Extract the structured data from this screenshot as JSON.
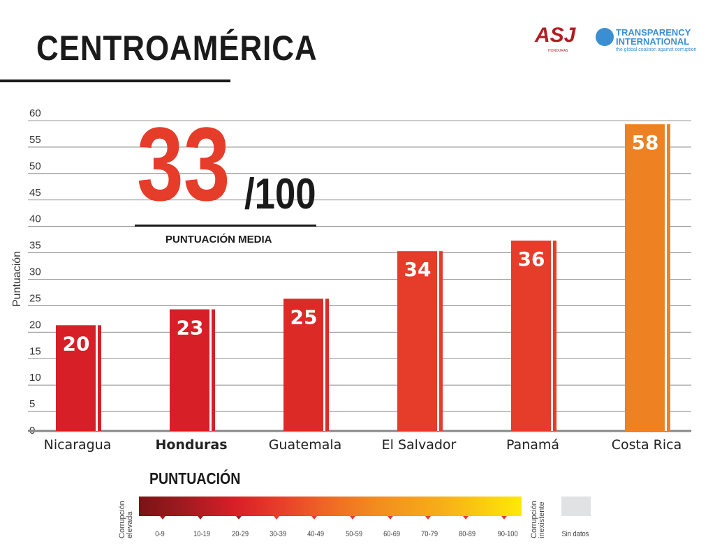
{
  "header": {
    "title": "CENTROAMÉRICA",
    "logo_asj": "ASJ",
    "logo_asj_sub": "HONDURAS",
    "logo_ti_line1": "TRANSPARENCY",
    "logo_ti_line2": "INTERNATIONAL",
    "logo_ti_tagline": "the global coalition against corruption"
  },
  "highlight": {
    "score": "33",
    "of": "/100",
    "label": "PUNTUACIÓN MEDIA"
  },
  "chart_data": {
    "type": "bar",
    "ylabel": "Puntuación",
    "ylim": [
      0,
      60
    ],
    "yticks": [
      "0",
      "5",
      "10",
      "15",
      "20",
      "25",
      "30",
      "35",
      "40",
      "45",
      "50",
      "55",
      "60"
    ],
    "grid": true,
    "categories": [
      "Nicaragua",
      "Honduras",
      "Guatemala",
      "El Salvador",
      "Panamá",
      "Costa Rica"
    ],
    "highlighted_category": "Honduras",
    "values": [
      20,
      23,
      25,
      34,
      36,
      58
    ],
    "colors": [
      "#d71f27",
      "#d71f27",
      "#dc2a26",
      "#e63c2a",
      "#e63c2a",
      "#ee8122"
    ]
  },
  "legend": {
    "title": "PUNTUACIÓN",
    "left_label": "Corrupción elevada",
    "right_label": "Corrupción inexistente",
    "ranges": [
      "0-9",
      "10-19",
      "20-29",
      "30-39",
      "40-49",
      "50-59",
      "60-69",
      "70-79",
      "80-89",
      "90-100"
    ],
    "no_data": "Sin datos",
    "no_data_color": "#e1e2e4"
  }
}
